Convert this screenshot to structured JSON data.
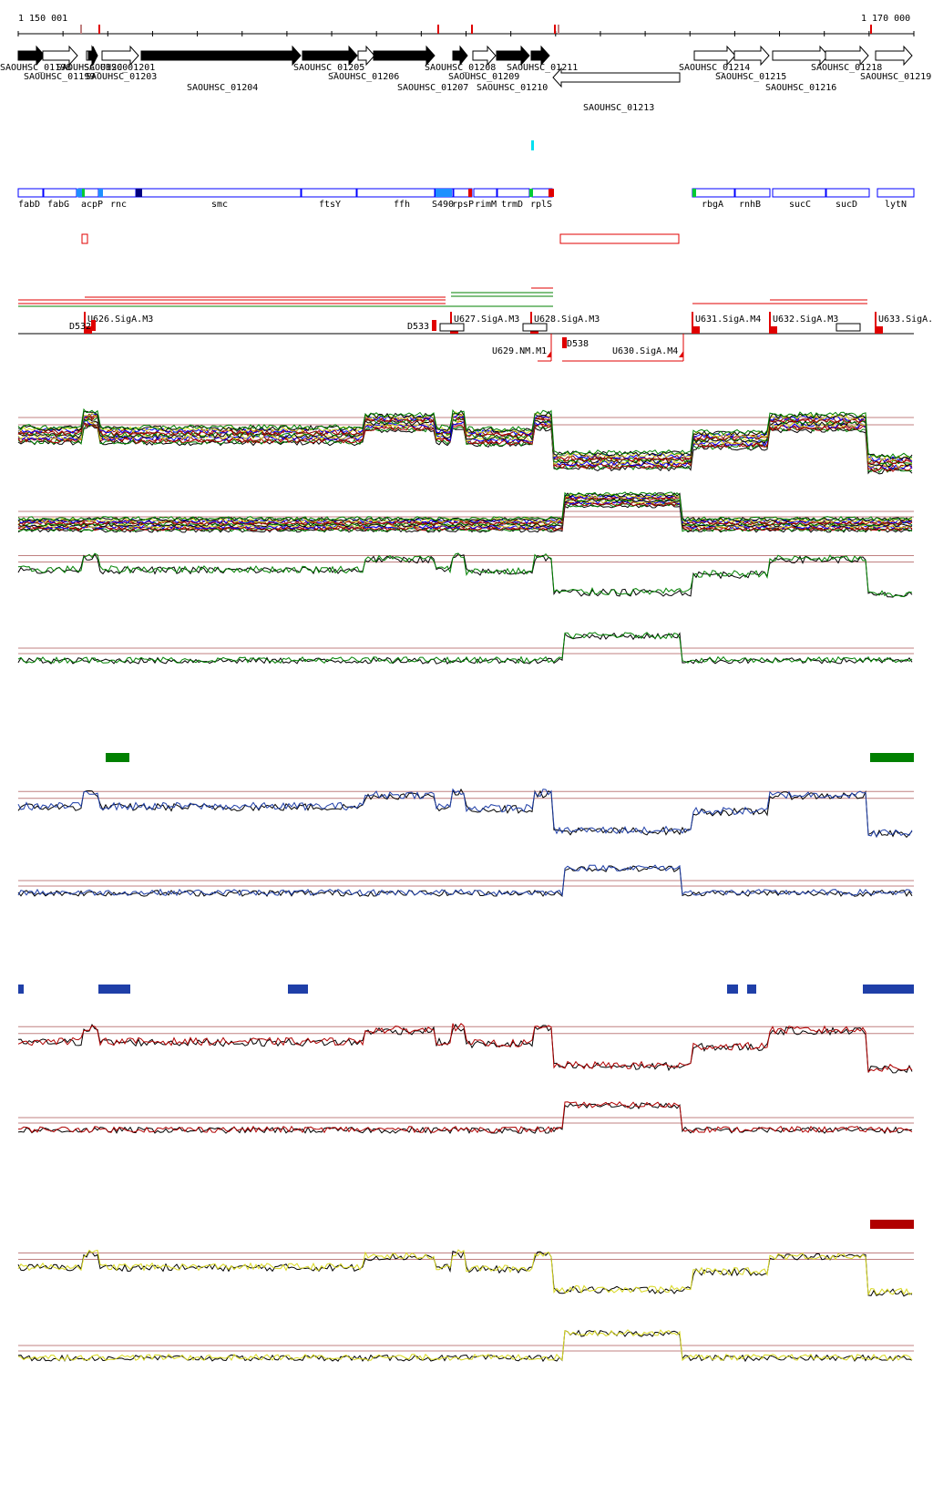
{
  "coordinates": {
    "start_label": "1 150 001",
    "end_label": "1 170 000",
    "start": 1150001,
    "end": 1170000
  },
  "colors": {
    "black": "#000000",
    "red": "#e00000",
    "green": "#008000",
    "blue": "#0000ff",
    "navy": "#1f3fa8",
    "dark_red": "#8b0000",
    "maroon": "#b00000",
    "yellow": "#d8d820",
    "cyan": "#00e0f0",
    "dodger": "#1e90ff",
    "lime": "#00cc33",
    "rose": "#c08080",
    "grey": "#777777"
  },
  "genes": [
    {
      "label": "SAOUHSC_01198",
      "strand": "+",
      "fill": "black"
    },
    {
      "label": "SAOUHSC_01199",
      "strand": "+",
      "fill": "white"
    },
    {
      "label": "SAOUHSC_01200",
      "strand": "+",
      "fill": "white"
    },
    {
      "label": "SAOUHSC_01201",
      "strand": "+",
      "fill": "black"
    },
    {
      "label": "SAOUHSC_01203",
      "strand": "+",
      "fill": "white"
    },
    {
      "label": "SAOUHSC_01204",
      "strand": "+",
      "fill": "black"
    },
    {
      "label": "SAOUHSC_01205",
      "strand": "+",
      "fill": "black"
    },
    {
      "label": "SAOUHSC_01206",
      "strand": "+",
      "fill": "white"
    },
    {
      "label": "SAOUHSC_01207",
      "strand": "+",
      "fill": "black"
    },
    {
      "label": "SAOUHSC_01208",
      "strand": "+",
      "fill": "black"
    },
    {
      "label": "SAOUHSC_01209",
      "strand": "+",
      "fill": "white"
    },
    {
      "label": "SAOUHSC_01210",
      "strand": "+",
      "fill": "black"
    },
    {
      "label": "SAOUHSC_01211",
      "strand": "+",
      "fill": "black"
    },
    {
      "label": "SAOUHSC_01213",
      "strand": "-",
      "fill": "white"
    },
    {
      "label": "SAOUHSC_01214",
      "strand": "+",
      "fill": "white"
    },
    {
      "label": "SAOUHSC_01215",
      "strand": "+",
      "fill": "white"
    },
    {
      "label": "SAOUHSC_01216",
      "strand": "+",
      "fill": "white"
    },
    {
      "label": "SAOUHSC_01218",
      "strand": "+",
      "fill": "white"
    },
    {
      "label": "SAOUHSC_01219",
      "strand": "+",
      "fill": "white"
    }
  ],
  "gene_names": [
    "fabD",
    "fabG",
    "acpP",
    "rnc",
    "smc",
    "ftsY",
    "ffh",
    "S490",
    "rpsP",
    "rimM",
    "trmD",
    "rplS",
    "rbgA",
    "rnhB",
    "sucC",
    "sucD",
    "lytN"
  ],
  "segments_upper": [
    {
      "label": "U626.SigA.M3"
    },
    {
      "label": "U627.SigA.M3"
    },
    {
      "label": "U628.SigA.M3"
    },
    {
      "label": "U631.SigA.M4"
    },
    {
      "label": "U632.SigA.M3"
    },
    {
      "label": "U633.SigA."
    }
  ],
  "segments_lower": [
    {
      "label": "U629.NM.M1"
    },
    {
      "label": "U630.SigA.M4"
    }
  ],
  "segments_down": [
    {
      "label": "D532"
    },
    {
      "label": "D533"
    },
    {
      "label": "D538"
    }
  ],
  "profiles": [
    {
      "name": "all-conditions-forward",
      "colors": [
        "black",
        "green",
        "maroon",
        "dark_red",
        "blue",
        "yellow"
      ]
    },
    {
      "name": "all-conditions-reverse",
      "colors": [
        "black",
        "green",
        "maroon",
        "dark_red",
        "blue",
        "yellow"
      ]
    },
    {
      "name": "green-forward",
      "colors": [
        "black",
        "green"
      ]
    },
    {
      "name": "green-reverse",
      "colors": [
        "black",
        "green"
      ]
    },
    {
      "name": "blue-forward",
      "colors": [
        "black",
        "navy"
      ]
    },
    {
      "name": "blue-reverse",
      "colors": [
        "black",
        "navy"
      ]
    },
    {
      "name": "red-forward",
      "colors": [
        "black",
        "maroon"
      ]
    },
    {
      "name": "red-reverse",
      "colors": [
        "black",
        "maroon"
      ]
    },
    {
      "name": "yellow-forward",
      "colors": [
        "black",
        "yellow"
      ]
    },
    {
      "name": "yellow-reverse",
      "colors": [
        "black",
        "yellow"
      ]
    }
  ]
}
